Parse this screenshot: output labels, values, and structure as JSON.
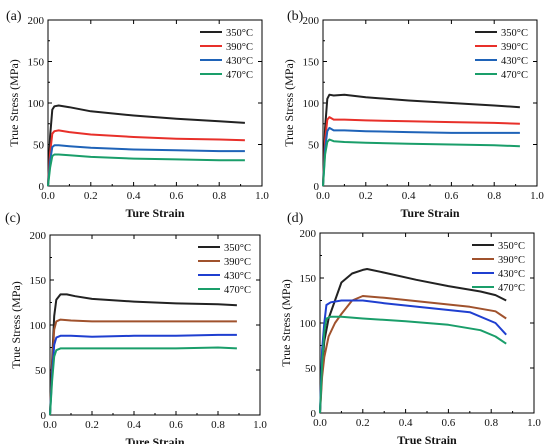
{
  "chart_data": [
    {
      "panel_label": "(a)",
      "type": "line",
      "xlabel": "Ture Strain",
      "ylabel": "True Stress (MPa)",
      "xlim": [
        0,
        1.0
      ],
      "ylim": [
        0,
        200
      ],
      "xticks": [
        0.0,
        0.2,
        0.4,
        0.6,
        0.8,
        1.0
      ],
      "xtick_labels": [
        "0.0",
        "0.2",
        "0.4",
        "0.6",
        "0.8",
        "1.0"
      ],
      "yticks": [
        0,
        50,
        100,
        150,
        200
      ],
      "ytick_labels": [
        "0",
        "50",
        "100",
        "150",
        "200"
      ],
      "legend_position": "top-right",
      "series": [
        {
          "name": "350°C",
          "color": "#222222",
          "x": [
            0,
            0.01,
            0.02,
            0.03,
            0.05,
            0.1,
            0.2,
            0.4,
            0.6,
            0.8,
            0.92
          ],
          "y": [
            0,
            60,
            92,
            96,
            97,
            95,
            90,
            85,
            81,
            78,
            76
          ]
        },
        {
          "name": "390°C",
          "color": "#e8302a",
          "x": [
            0,
            0.01,
            0.02,
            0.03,
            0.05,
            0.1,
            0.2,
            0.4,
            0.6,
            0.8,
            0.92
          ],
          "y": [
            0,
            40,
            63,
            66,
            67,
            65,
            62,
            59,
            57,
            56,
            55
          ]
        },
        {
          "name": "430°C",
          "color": "#1f63b8",
          "x": [
            0,
            0.01,
            0.02,
            0.03,
            0.05,
            0.1,
            0.2,
            0.4,
            0.6,
            0.8,
            0.92
          ],
          "y": [
            0,
            30,
            47,
            49,
            49,
            48,
            46,
            44,
            43,
            42,
            42
          ]
        },
        {
          "name": "470°C",
          "color": "#1a9e6a",
          "x": [
            0,
            0.01,
            0.02,
            0.03,
            0.05,
            0.1,
            0.2,
            0.4,
            0.6,
            0.8,
            0.92
          ],
          "y": [
            0,
            22,
            36,
            38,
            38,
            37,
            35,
            33,
            32,
            31,
            31
          ]
        }
      ]
    },
    {
      "panel_label": "(b)",
      "type": "line",
      "xlabel": "Ture Strain",
      "ylabel": "True Stress (MPa)",
      "xlim": [
        0,
        1.0
      ],
      "ylim": [
        0,
        200
      ],
      "xticks": [
        0.0,
        0.2,
        0.4,
        0.6,
        0.8,
        1.0
      ],
      "xtick_labels": [
        "0.0",
        "0.2",
        "0.4",
        "0.6",
        "0.8",
        "1.0"
      ],
      "yticks": [
        0,
        50,
        100,
        150,
        200
      ],
      "ytick_labels": [
        "0",
        "50",
        "100",
        "150",
        "200"
      ],
      "legend_position": "top-right",
      "series": [
        {
          "name": "350°C",
          "color": "#222222",
          "x": [
            0,
            0.01,
            0.02,
            0.03,
            0.05,
            0.1,
            0.2,
            0.4,
            0.6,
            0.8,
            0.92
          ],
          "y": [
            0,
            70,
            105,
            110,
            109,
            110,
            107,
            103,
            100,
            97,
            95
          ]
        },
        {
          "name": "390°C",
          "color": "#e8302a",
          "x": [
            0,
            0.01,
            0.02,
            0.03,
            0.05,
            0.1,
            0.2,
            0.4,
            0.6,
            0.8,
            0.92
          ],
          "y": [
            0,
            55,
            80,
            83,
            80,
            80,
            79,
            78,
            77,
            76,
            75
          ]
        },
        {
          "name": "430°C",
          "color": "#1f63b8",
          "x": [
            0,
            0.01,
            0.02,
            0.03,
            0.05,
            0.1,
            0.2,
            0.4,
            0.6,
            0.8,
            0.92
          ],
          "y": [
            0,
            45,
            66,
            70,
            67,
            67,
            66,
            65,
            64,
            64,
            64
          ]
        },
        {
          "name": "470°C",
          "color": "#1a9e6a",
          "x": [
            0,
            0.01,
            0.02,
            0.03,
            0.05,
            0.1,
            0.2,
            0.4,
            0.6,
            0.8,
            0.92
          ],
          "y": [
            0,
            38,
            53,
            56,
            54,
            53,
            52,
            51,
            50,
            49,
            48
          ]
        }
      ]
    },
    {
      "panel_label": "(c)",
      "type": "line",
      "xlabel": "Ture Strain",
      "ylabel": "True Stress (MPa)",
      "xlim": [
        0,
        1.0
      ],
      "ylim": [
        0,
        200
      ],
      "xticks": [
        0.0,
        0.2,
        0.4,
        0.6,
        0.8,
        1.0
      ],
      "xtick_labels": [
        "0.0",
        "0.2",
        "0.4",
        "0.6",
        "0.8",
        "1.0"
      ],
      "yticks": [
        0,
        50,
        100,
        150,
        200
      ],
      "ytick_labels": [
        "0",
        "50",
        "100",
        "150",
        "200"
      ],
      "legend_position": "top-right",
      "series": [
        {
          "name": "350°C",
          "color": "#222222",
          "x": [
            0,
            0.01,
            0.02,
            0.03,
            0.05,
            0.08,
            0.12,
            0.2,
            0.4,
            0.6,
            0.8,
            0.89
          ],
          "y": [
            0,
            60,
            110,
            128,
            134,
            134,
            132,
            129,
            126,
            124,
            123,
            122
          ]
        },
        {
          "name": "390°C",
          "color": "#a0522d",
          "x": [
            0,
            0.01,
            0.02,
            0.03,
            0.05,
            0.1,
            0.2,
            0.4,
            0.6,
            0.8,
            0.89
          ],
          "y": [
            0,
            55,
            95,
            104,
            106,
            105,
            104,
            104,
            104,
            104,
            104
          ]
        },
        {
          "name": "430°C",
          "color": "#1f3fd0",
          "x": [
            0,
            0.01,
            0.02,
            0.03,
            0.05,
            0.1,
            0.2,
            0.4,
            0.6,
            0.8,
            0.89
          ],
          "y": [
            0,
            45,
            78,
            86,
            88,
            88,
            87,
            88,
            88,
            89,
            89
          ]
        },
        {
          "name": "470°C",
          "color": "#1a9e6a",
          "x": [
            0,
            0.01,
            0.02,
            0.03,
            0.05,
            0.1,
            0.2,
            0.4,
            0.6,
            0.8,
            0.89
          ],
          "y": [
            0,
            38,
            65,
            72,
            74,
            74,
            74,
            74,
            74,
            75,
            74
          ]
        }
      ]
    },
    {
      "panel_label": "(d)",
      "type": "line",
      "xlabel": "True Strain",
      "ylabel": "True Stress (MPa)",
      "xlim": [
        0,
        1.0
      ],
      "ylim": [
        0,
        200
      ],
      "xticks": [
        0.0,
        0.2,
        0.4,
        0.6,
        0.8,
        1.0
      ],
      "xtick_labels": [
        "0.0",
        "0.2",
        "0.4",
        "0.6",
        "0.8",
        "1.0"
      ],
      "yticks": [
        0,
        50,
        100,
        150,
        200
      ],
      "ytick_labels": [
        "0",
        "50",
        "100",
        "150",
        "200"
      ],
      "legend_position": "top-right",
      "series": [
        {
          "name": "350°C",
          "color": "#222222",
          "x": [
            0,
            0.01,
            0.02,
            0.04,
            0.07,
            0.1,
            0.15,
            0.2,
            0.22,
            0.3,
            0.45,
            0.6,
            0.75,
            0.82,
            0.87
          ],
          "y": [
            0,
            50,
            80,
            105,
            125,
            145,
            155,
            159,
            160,
            156,
            148,
            141,
            135,
            131,
            125
          ]
        },
        {
          "name": "390°C",
          "color": "#a0522d",
          "x": [
            0,
            0.01,
            0.02,
            0.04,
            0.07,
            0.1,
            0.15,
            0.2,
            0.3,
            0.5,
            0.7,
            0.82,
            0.87
          ],
          "y": [
            0,
            40,
            62,
            85,
            100,
            110,
            125,
            130,
            128,
            123,
            118,
            113,
            105
          ]
        },
        {
          "name": "430°C",
          "color": "#1f3fd0",
          "x": [
            0,
            0.01,
            0.02,
            0.03,
            0.05,
            0.1,
            0.2,
            0.3,
            0.5,
            0.7,
            0.82,
            0.87
          ],
          "y": [
            0,
            70,
            100,
            120,
            123,
            125,
            125,
            122,
            117,
            112,
            100,
            87
          ]
        },
        {
          "name": "470°C",
          "color": "#1a9e6a",
          "x": [
            0,
            0.01,
            0.02,
            0.03,
            0.05,
            0.1,
            0.2,
            0.4,
            0.6,
            0.75,
            0.82,
            0.87
          ],
          "y": [
            0,
            55,
            90,
            105,
            107,
            107,
            105,
            102,
            98,
            92,
            85,
            77
          ]
        }
      ]
    }
  ]
}
